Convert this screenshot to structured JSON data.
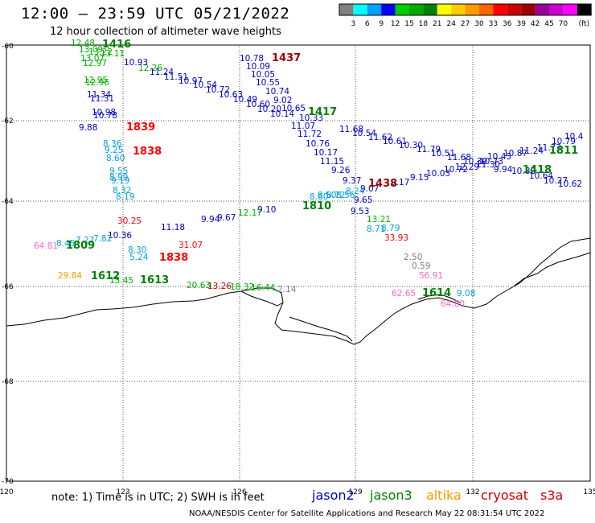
{
  "header": {
    "title": "12:00 – 23:59 UTC 05/21/2022",
    "subtitle": "12 hour collection of altimeter wave heights"
  },
  "colorbar": {
    "colors": [
      "#808080",
      "#00ffff",
      "#00a0ff",
      "#0000ff",
      "#00cc00",
      "#00aa00",
      "#008000",
      "#ffff00",
      "#ffcc00",
      "#ff9900",
      "#ff6600",
      "#ff0000",
      "#cc0000",
      "#990000",
      "#990099",
      "#cc00cc",
      "#ff00ff",
      "#000000"
    ],
    "labels": [
      "3",
      "6",
      "9",
      "12",
      "15",
      "18",
      "21",
      "24",
      "27",
      "30",
      "33",
      "36",
      "39",
      "42",
      "45",
      "70"
    ],
    "unit": "(ft)"
  },
  "axes": {
    "lon_labels": [
      "120",
      "123",
      "126",
      "129",
      "132",
      "135"
    ],
    "lat_labels": [
      "-60",
      "-62",
      "-64",
      "-66",
      "-68",
      "-70"
    ]
  },
  "tracks": [
    {
      "color": "#00b000",
      "labels": [
        "12.48",
        "13.09",
        "13.22",
        "13.11",
        "13.07",
        "12.97",
        "12.95",
        "12.96",
        "12.26"
      ]
    },
    {
      "color": "#0000cc",
      "labels": [
        "10.93",
        "11.24",
        "11.51",
        "10.97",
        "10.54",
        "10.72",
        "10.63",
        "10.49",
        "10.60",
        "10.20",
        "10.14",
        "10.65",
        "10.33"
      ]
    },
    {
      "color": "#0000cc",
      "labels": [
        "10.78",
        "10.09",
        "10.05",
        "10.55",
        "10.74",
        "9.02",
        "11.07",
        "11.72",
        "10.76",
        "10.17",
        "11.15",
        "9.26",
        "9.37"
      ]
    },
    {
      "color": "#0000cc",
      "labels": [
        "11.68",
        "10.54",
        "11.62",
        "10.61",
        "10.30",
        "11.79",
        "10.51",
        "11.68",
        "10.30",
        "10.73",
        "10.43",
        "10.87",
        "11.24",
        "11.73",
        "10.79",
        "10.4"
      ]
    },
    {
      "color": "#0000cc",
      "labels": [
        "9.07",
        "9.17",
        "9.15",
        "10.03",
        "10.72",
        "12.29",
        "11.30",
        "9.94",
        "10.82",
        "10.64",
        "10.27",
        "10.62"
      ]
    },
    {
      "color": "#00a0e0",
      "labels": [
        "8.36",
        "9.25",
        "8.60",
        "9.55",
        "8.99",
        "9.19",
        "8.32",
        "8.19"
      ]
    },
    {
      "color": "#00a0e0",
      "labels": [
        "8.30",
        "5.24",
        "8.71",
        "8.79",
        "8.56",
        "8.24",
        "8.72",
        "8.50",
        "8.60"
      ]
    },
    {
      "color": "#0000cc",
      "labels": [
        "11.34",
        "11.31",
        "10.98",
        "10.78",
        "9.88",
        "10.36",
        "11.18",
        "9.94",
        "9.67",
        "9.10",
        "9.53",
        "9.65"
      ]
    },
    {
      "color": "#ff0000",
      "labels": [
        "30.25",
        "31.07",
        "33.93"
      ]
    },
    {
      "color": "#00b000",
      "labels": [
        "12.17",
        "13.21",
        "20.63",
        "18.32",
        "16.44",
        "13.45"
      ]
    }
  ],
  "extra_labels": [
    {
      "text": "64.81",
      "color": "#ff66cc"
    },
    {
      "text": "8.45",
      "color": "#00a0e0"
    },
    {
      "text": "7.27",
      "color": "#00a0e0"
    },
    {
      "text": "7.82",
      "color": "#00a0e0"
    },
    {
      "text": "29.84",
      "color": "#ff9900"
    },
    {
      "text": "2.50",
      "color": "#808080"
    },
    {
      "text": "0.59",
      "color": "#808080"
    },
    {
      "text": "56.91",
      "color": "#ff66cc"
    },
    {
      "text": "2.14",
      "color": "#808080"
    },
    {
      "text": "64.80",
      "color": "#ff66cc"
    },
    {
      "text": "62.65",
      "color": "#ff66cc"
    },
    {
      "text": "9.08",
      "color": "#00a0e0"
    },
    {
      "text": "13.26",
      "color": "#cc0000"
    }
  ],
  "time_labels": [
    {
      "text": "1416",
      "color": "#008000"
    },
    {
      "text": "1437",
      "color": "#990000"
    },
    {
      "text": "1417",
      "color": "#008000"
    },
    {
      "text": "1839",
      "color": "#ff0000"
    },
    {
      "text": "1838",
      "color": "#ff0000"
    },
    {
      "text": "1811",
      "color": "#008000"
    },
    {
      "text": "1418",
      "color": "#008000"
    },
    {
      "text": "1438",
      "color": "#990000"
    },
    {
      "text": "1810",
      "color": "#008000"
    },
    {
      "text": "1809",
      "color": "#008000"
    },
    {
      "text": "1838",
      "color": "#ff0000"
    },
    {
      "text": "1612",
      "color": "#008000"
    },
    {
      "text": "1613",
      "color": "#008000"
    },
    {
      "text": "1614",
      "color": "#008000"
    }
  ],
  "footer": {
    "note": "note:  1) Time is in UTC; 2) SWH is in feet",
    "credit": "NOAA/NESDIS Center for Satellite Applications and Research    May 22 08:31:54 UTC 2022"
  },
  "satellites": [
    {
      "name": "jason2",
      "color": "#0000cc"
    },
    {
      "name": "jason3",
      "color": "#008000"
    },
    {
      "name": "altika",
      "color": "#ff9900"
    },
    {
      "name": "cryosat",
      "color": "#cc0000"
    },
    {
      "name": "s3a",
      "color": "#cc0000"
    }
  ]
}
